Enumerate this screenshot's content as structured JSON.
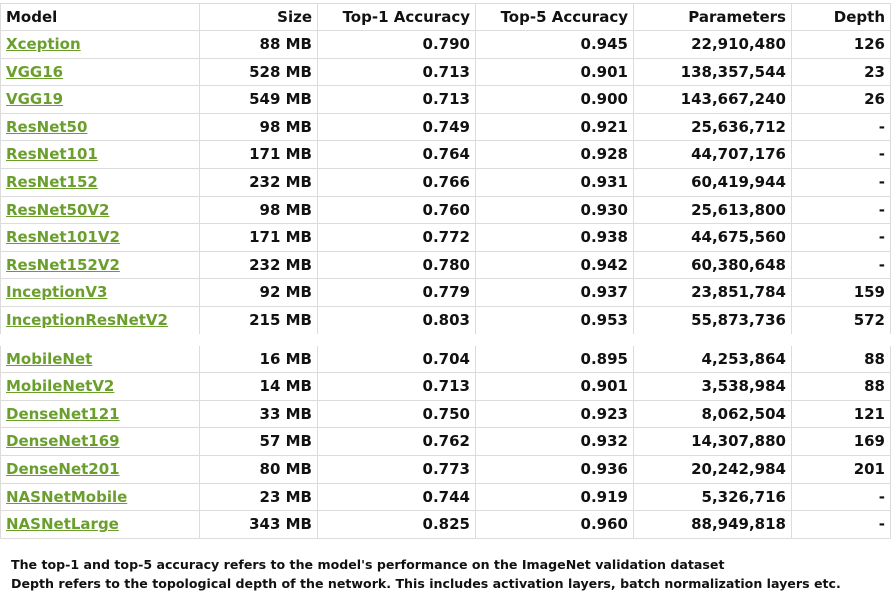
{
  "table": {
    "headers": {
      "model": "Model",
      "size": "Size",
      "top1": "Top-1 Accuracy",
      "top5": "Top-5 Accuracy",
      "parameters": "Parameters",
      "depth": "Depth"
    },
    "rows": [
      {
        "model": "Xception",
        "size": "88 MB",
        "top1": "0.790",
        "top5": "0.945",
        "parameters": "22,910,480",
        "depth": "126"
      },
      {
        "model": "VGG16",
        "size": "528 MB",
        "top1": "0.713",
        "top5": "0.901",
        "parameters": "138,357,544",
        "depth": "23"
      },
      {
        "model": "VGG19",
        "size": "549 MB",
        "top1": "0.713",
        "top5": "0.900",
        "parameters": "143,667,240",
        "depth": "26"
      },
      {
        "model": "ResNet50",
        "size": "98 MB",
        "top1": "0.749",
        "top5": "0.921",
        "parameters": "25,636,712",
        "depth": "-"
      },
      {
        "model": "ResNet101",
        "size": "171 MB",
        "top1": "0.764",
        "top5": "0.928",
        "parameters": "44,707,176",
        "depth": "-"
      },
      {
        "model": "ResNet152",
        "size": "232 MB",
        "top1": "0.766",
        "top5": "0.931",
        "parameters": "60,419,944",
        "depth": "-"
      },
      {
        "model": "ResNet50V2",
        "size": "98 MB",
        "top1": "0.760",
        "top5": "0.930",
        "parameters": "25,613,800",
        "depth": "-"
      },
      {
        "model": "ResNet101V2",
        "size": "171 MB",
        "top1": "0.772",
        "top5": "0.938",
        "parameters": "44,675,560",
        "depth": "-"
      },
      {
        "model": "ResNet152V2",
        "size": "232 MB",
        "top1": "0.780",
        "top5": "0.942",
        "parameters": "60,380,648",
        "depth": "-"
      },
      {
        "model": "InceptionV3",
        "size": "92 MB",
        "top1": "0.779",
        "top5": "0.937",
        "parameters": "23,851,784",
        "depth": "159"
      },
      {
        "model": "InceptionResNetV2",
        "size": "215 MB",
        "top1": "0.803",
        "top5": "0.953",
        "parameters": "55,873,736",
        "depth": "572"
      },
      {
        "model": "MobileNet",
        "size": "16 MB",
        "top1": "0.704",
        "top5": "0.895",
        "parameters": "4,253,864",
        "depth": "88"
      },
      {
        "model": "MobileNetV2",
        "size": "14 MB",
        "top1": "0.713",
        "top5": "0.901",
        "parameters": "3,538,984",
        "depth": "88"
      },
      {
        "model": "DenseNet121",
        "size": "33 MB",
        "top1": "0.750",
        "top5": "0.923",
        "parameters": "8,062,504",
        "depth": "121"
      },
      {
        "model": "DenseNet169",
        "size": "57 MB",
        "top1": "0.762",
        "top5": "0.932",
        "parameters": "14,307,880",
        "depth": "169"
      },
      {
        "model": "DenseNet201",
        "size": "80 MB",
        "top1": "0.773",
        "top5": "0.936",
        "parameters": "20,242,984",
        "depth": "201"
      },
      {
        "model": "NASNetMobile",
        "size": "23 MB",
        "top1": "0.744",
        "top5": "0.919",
        "parameters": "5,326,716",
        "depth": "-"
      },
      {
        "model": "NASNetLarge",
        "size": "343 MB",
        "top1": "0.825",
        "top5": "0.960",
        "parameters": "88,949,818",
        "depth": "-"
      }
    ]
  },
  "notes": {
    "line1": "The top-1 and top-5 accuracy refers to the model's performance on the ImageNet validation dataset",
    "line2": "Depth refers to the topological depth of the network. This includes activation layers, batch normalization layers etc."
  },
  "colors": {
    "link": "#6a9e2d",
    "grid": "#dcdcdc",
    "text": "#111111"
  }
}
